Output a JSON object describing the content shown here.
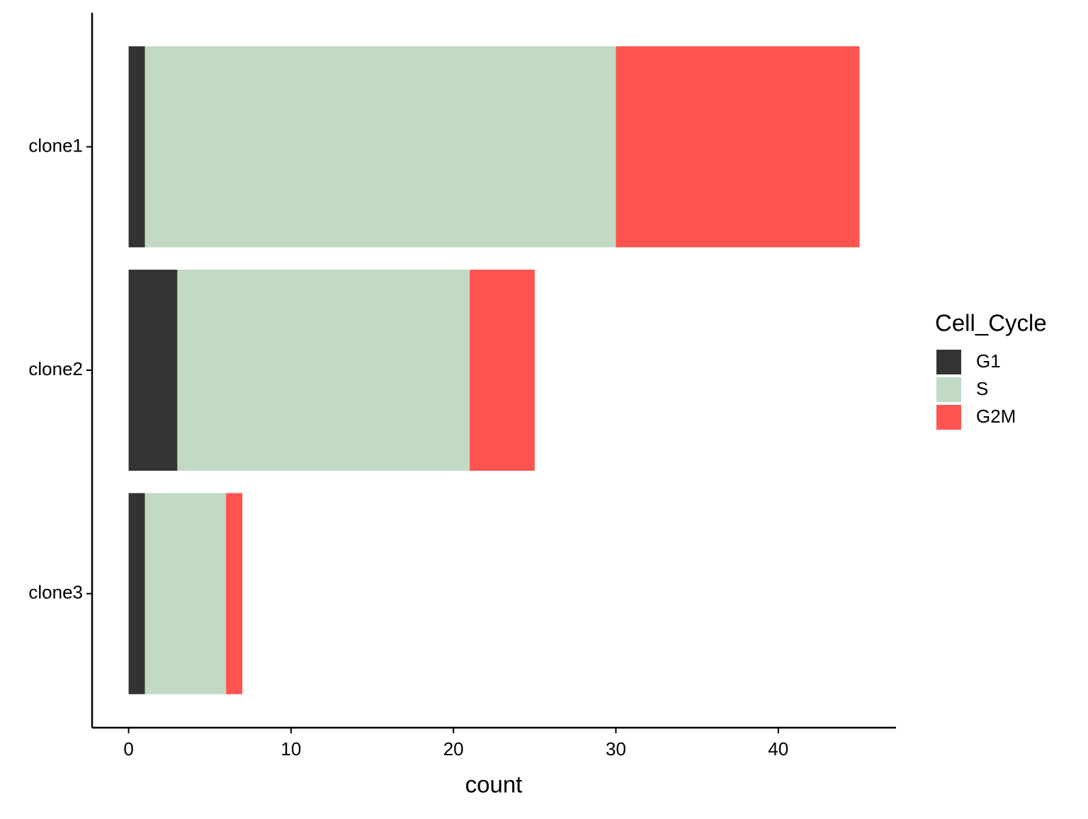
{
  "chart_data": {
    "type": "stacked-bar-horizontal",
    "x_label": "count",
    "legend_title": "Cell_Cycle",
    "categories": [
      "clone1",
      "clone2",
      "clone3"
    ],
    "series": [
      {
        "name": "G1",
        "color": "#333333",
        "values": [
          1,
          3,
          1
        ]
      },
      {
        "name": "S",
        "color": "#c2dac4",
        "values": [
          29,
          18,
          5
        ]
      },
      {
        "name": "G2M",
        "color": "#ff5350",
        "values": [
          15,
          4,
          1
        ]
      }
    ],
    "xlim": [
      -2.25,
      47.25
    ],
    "xticks": [
      0,
      10,
      20,
      30,
      40
    ],
    "grid": false,
    "legend": "right"
  }
}
